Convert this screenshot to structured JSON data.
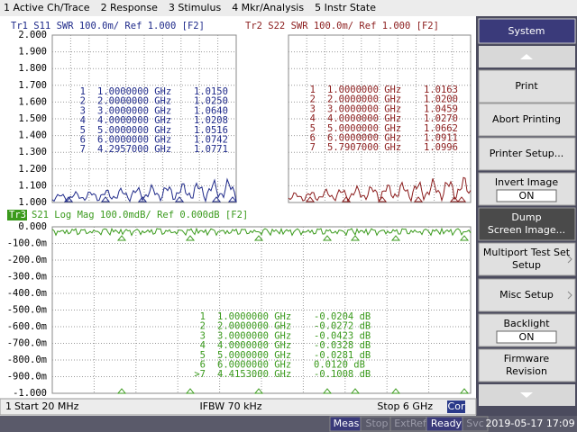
{
  "menu": [
    "1 Active Ch/Trace",
    "2 Response",
    "3 Stimulus",
    "4 Mkr/Analysis",
    "5 Instr State"
  ],
  "trace1": {
    "header": "Tr1 S11 SWR 100.0m/ Ref 1.000 [F2]",
    "yticks": [
      "2.000",
      "1.900",
      "1.800",
      "1.700",
      "1.600",
      "1.500",
      "1.400",
      "1.300",
      "1.200",
      "1.100",
      "1.000"
    ],
    "markers": [
      [
        "1",
        "1.0000000 GHz",
        "1.0150"
      ],
      [
        "2",
        "2.0000000 GHz",
        "1.0250"
      ],
      [
        "3",
        "3.0000000 GHz",
        "1.0640"
      ],
      [
        "4",
        "4.0000000 GHz",
        "1.0208"
      ],
      [
        "5",
        "5.0000000 GHz",
        "1.0516"
      ],
      [
        "6",
        "6.0000000 GHz",
        "1.0742"
      ],
      [
        "7",
        "4.2957000 GHz",
        "1.0771"
      ]
    ]
  },
  "trace2": {
    "header": "Tr2 S22 SWR 100.0m/ Ref 1.000 [F2]",
    "markers": [
      [
        "1",
        "1.0000000 GHz",
        "1.0163"
      ],
      [
        "2",
        "2.0000000 GHz",
        "1.0200"
      ],
      [
        "3",
        "3.0000000 GHz",
        "1.0459"
      ],
      [
        "4",
        "4.0000000 GHz",
        "1.0270"
      ],
      [
        "5",
        "5.0000000 GHz",
        "1.0662"
      ],
      [
        "6",
        "6.0000000 GHz",
        "1.0911"
      ],
      [
        "7",
        "5.7907000 GHz",
        "1.0996"
      ]
    ]
  },
  "trace3": {
    "badge": "Tr3",
    "header": "S21 Log Mag 100.0mdB/ Ref 0.000dB [F2]",
    "yticks": [
      "0.000",
      "-100.0m",
      "-200.0m",
      "-300.0m",
      "-400.0m",
      "-500.0m",
      "-600.0m",
      "-700.0m",
      "-800.0m",
      "-900.0m",
      "-1.000"
    ],
    "markers": [
      [
        "1",
        "1.0000000 GHz",
        "-0.0204 dB"
      ],
      [
        "2",
        "2.0000000 GHz",
        "-0.0272 dB"
      ],
      [
        "3",
        "3.0000000 GHz",
        "-0.0423 dB"
      ],
      [
        "4",
        "4.0000000 GHz",
        "-0.0328 dB"
      ],
      [
        "5",
        "5.0000000 GHz",
        "-0.0281 dB"
      ],
      [
        "6",
        "6.0000000 GHz",
        "0.0120 dB"
      ],
      [
        ">7",
        "4.4153000 GHz",
        "-0.1008 dB"
      ]
    ]
  },
  "footer": {
    "channel": "1",
    "start": "Start 20 MHz",
    "ifbw": "IFBW 70 kHz",
    "stop": "Stop 6 GHz",
    "cor": "Cor"
  },
  "status": [
    "Meas",
    "Stop",
    "ExtRef",
    "Ready",
    "Svc"
  ],
  "datetime": "2019-05-17 17:09",
  "softkeys": {
    "title": "System",
    "buttons": [
      {
        "lines": [
          "Print"
        ]
      },
      {
        "lines": [
          "Abort Printing"
        ]
      },
      {
        "lines": [
          "Printer Setup..."
        ]
      },
      {
        "lines": [
          "Invert Image"
        ],
        "state": "ON"
      },
      {
        "lines": [
          "Dump",
          "Screen Image..."
        ]
      },
      {
        "lines": [
          "Multiport Test Set",
          "Setup"
        ]
      },
      {
        "lines": [
          "Misc Setup"
        ]
      },
      {
        "lines": [
          "Backlight"
        ],
        "state": "ON"
      },
      {
        "lines": [
          "Firmware",
          "Revision"
        ]
      }
    ]
  }
}
